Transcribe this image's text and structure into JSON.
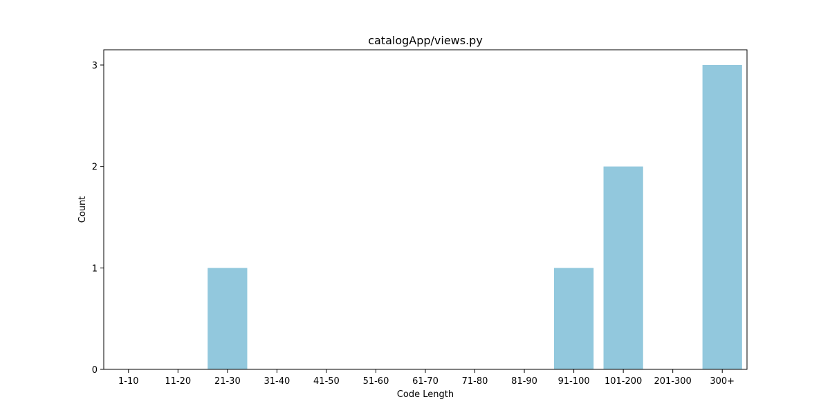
{
  "chart_data": {
    "type": "bar",
    "title": "catalogApp/views.py",
    "xlabel": "Code Length",
    "ylabel": "Count",
    "categories": [
      "1-10",
      "11-20",
      "21-30",
      "31-40",
      "41-50",
      "51-60",
      "61-70",
      "71-80",
      "81-90",
      "91-100",
      "101-200",
      "201-300",
      "300+"
    ],
    "values": [
      0,
      0,
      1,
      0,
      0,
      0,
      0,
      0,
      0,
      1,
      2,
      0,
      3
    ],
    "yticks": [
      0,
      1,
      2,
      3
    ],
    "ylim": [
      0,
      3.15
    ],
    "bar_color": "#92c8dd",
    "grid": false,
    "legend": "none"
  }
}
